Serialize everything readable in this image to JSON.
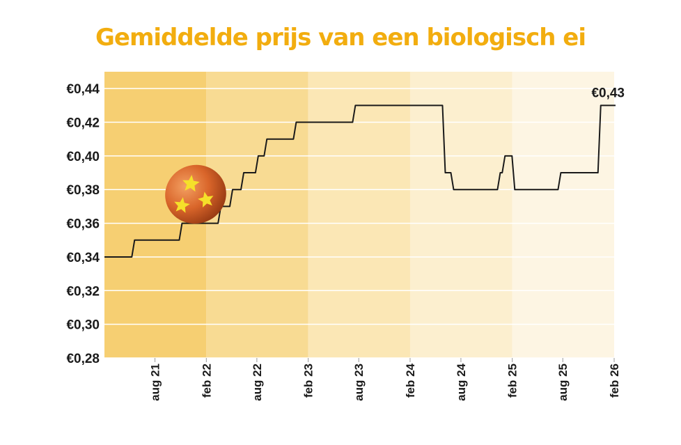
{
  "chart_data": {
    "type": "line",
    "title": "Gemiddelde prijs van een biologisch ei",
    "xlabel": "",
    "ylabel": "",
    "ylim": [
      0.28,
      0.45
    ],
    "y_ticks": [
      {
        "value": 0.28,
        "label": "€0,28"
      },
      {
        "value": 0.3,
        "label": "€0,30"
      },
      {
        "value": 0.32,
        "label": "€0,32"
      },
      {
        "value": 0.34,
        "label": "€0,34"
      },
      {
        "value": 0.36,
        "label": "€0,36"
      },
      {
        "value": 0.38,
        "label": "€0,38"
      },
      {
        "value": 0.4,
        "label": "€0,40"
      },
      {
        "value": 0.42,
        "label": "€0,42"
      },
      {
        "value": 0.44,
        "label": "€0,44"
      }
    ],
    "x_ticks": [
      {
        "date": "2021-08-01",
        "label": "aug 21"
      },
      {
        "date": "2022-02-01",
        "label": "feb 22"
      },
      {
        "date": "2022-08-01",
        "label": "aug 22"
      },
      {
        "date": "2023-02-01",
        "label": "feb 23"
      },
      {
        "date": "2023-08-01",
        "label": "aug 23"
      },
      {
        "date": "2024-02-01",
        "label": "feb 24"
      },
      {
        "date": "2024-08-01",
        "label": "aug 24"
      },
      {
        "date": "2025-02-01",
        "label": "feb 25"
      },
      {
        "date": "2025-08-01",
        "label": "aug 25"
      },
      {
        "date": "2026-02-01",
        "label": "feb 26"
      }
    ],
    "background_bands": [
      {
        "from": "2021-02-01",
        "to": "2022-02-01",
        "color": "#f6cf72"
      },
      {
        "from": "2022-02-01",
        "to": "2023-02-01",
        "color": "#f8db93"
      },
      {
        "from": "2023-02-01",
        "to": "2024-02-01",
        "color": "#fbe7b5"
      },
      {
        "from": "2024-02-01",
        "to": "2025-02-01",
        "color": "#fcefcf"
      },
      {
        "from": "2025-02-01",
        "to": "2026-02-01",
        "color": "#fdf5e3"
      }
    ],
    "grid": true,
    "series": [
      {
        "color": "#1a1a1a",
        "step": true,
        "points": [
          {
            "x": "2021-02-01",
            "y": 0.34
          },
          {
            "x": "2021-05-15",
            "y": 0.35
          },
          {
            "x": "2021-11-01",
            "y": 0.36
          },
          {
            "x": "2022-03-20",
            "y": 0.37
          },
          {
            "x": "2022-05-01",
            "y": 0.38
          },
          {
            "x": "2022-06-10",
            "y": 0.39
          },
          {
            "x": "2022-08-01",
            "y": 0.4
          },
          {
            "x": "2022-09-01",
            "y": 0.41
          },
          {
            "x": "2022-12-15",
            "y": 0.42
          },
          {
            "x": "2023-07-15",
            "y": 0.43
          },
          {
            "x": "2024-06-01",
            "y": 0.39
          },
          {
            "x": "2024-07-01",
            "y": 0.38
          },
          {
            "x": "2024-12-15",
            "y": 0.39
          },
          {
            "x": "2025-01-01",
            "y": 0.4
          },
          {
            "x": "2025-02-05",
            "y": 0.38
          },
          {
            "x": "2025-07-20",
            "y": 0.39
          },
          {
            "x": "2025-12-10",
            "y": 0.43
          },
          {
            "x": "2026-02-01",
            "y": 0.43
          }
        ]
      }
    ],
    "annotations": [
      {
        "text": "€0,43",
        "x": "2026-02-01",
        "y": 0.43
      }
    ],
    "decoration": {
      "icon": "orange-egg-with-yellow-stars",
      "egg_color": "#d9652a",
      "star_color": "#f5e02a"
    }
  }
}
